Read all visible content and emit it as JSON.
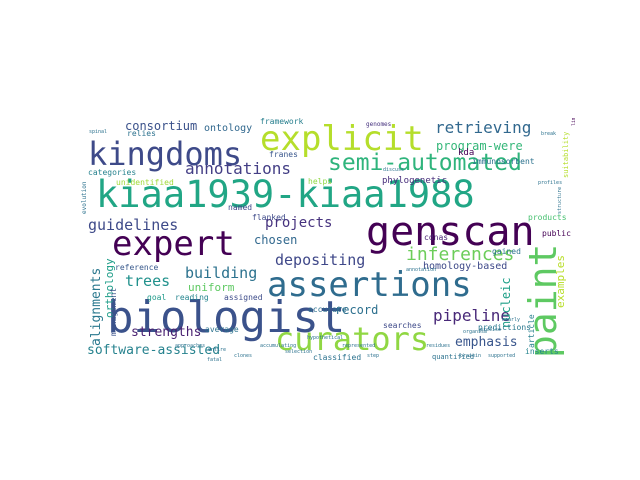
{
  "words": [
    {
      "text": "kiaa1939-kiaa1988",
      "color": "#21a685"
    },
    {
      "text": "genscan",
      "color": "#440154"
    },
    {
      "text": "biologist",
      "color": "#3b528b"
    },
    {
      "text": "assertions",
      "color": "#2f6c8e"
    },
    {
      "text": "expert",
      "color": "#440154"
    },
    {
      "text": "explicit",
      "color": "#b5de2b"
    },
    {
      "text": "curators",
      "color": "#90d743"
    },
    {
      "text": "kingdoms",
      "color": "#3e4a89"
    },
    {
      "text": "paint",
      "color": "#5ec962"
    },
    {
      "text": "semi-automated",
      "color": "#2fb47c"
    },
    {
      "text": "inferences",
      "color": "#6ccd5a"
    },
    {
      "text": "annotations",
      "color": "#433e85"
    },
    {
      "text": "retrieving",
      "color": "#31688e"
    },
    {
      "text": "guidelines",
      "color": "#3e4a89"
    },
    {
      "text": "projects",
      "color": "#46327e"
    },
    {
      "text": "trees",
      "color": "#21918c"
    },
    {
      "text": "building",
      "color": "#2c728e"
    },
    {
      "text": "depositing",
      "color": "#3f4889"
    },
    {
      "text": "pipeline",
      "color": "#482878"
    },
    {
      "text": "software-assisted",
      "color": "#26828e"
    },
    {
      "text": "strengths",
      "color": "#481f70"
    },
    {
      "text": "emphasis",
      "color": "#39568c"
    },
    {
      "text": "alignments",
      "color": "#2a788e"
    },
    {
      "text": "consortium",
      "color": "#3b528b"
    },
    {
      "text": "chosen",
      "color": "#31688e"
    },
    {
      "text": "uniform",
      "color": "#5ec962"
    },
    {
      "text": "orthology",
      "color": "#1f9e89"
    },
    {
      "text": "record",
      "color": "#2d708e"
    },
    {
      "text": "nucleic",
      "color": "#1fa088"
    },
    {
      "text": "examples",
      "color": "#b8de29"
    },
    {
      "text": "program-were",
      "color": "#35b779"
    },
    {
      "text": "homology-based",
      "color": "#3e4989"
    },
    {
      "text": "ontology",
      "color": "#31688e"
    },
    {
      "text": "framework",
      "color": "#277f8e"
    },
    {
      "text": "franes",
      "color": "#39568c"
    },
    {
      "text": "flanked",
      "color": "#3e4a89"
    },
    {
      "text": "unidentified",
      "color": "#a0da39"
    },
    {
      "text": "categories",
      "color": "#26828e"
    },
    {
      "text": "relies",
      "color": "#2c728e"
    },
    {
      "text": "phylogenetic",
      "color": "#472d7b"
    },
    {
      "text": "kda",
      "color": "#440154"
    },
    {
      "text": "immunosorbent",
      "color": "#2c728e"
    },
    {
      "text": "reference",
      "color": "#38598c"
    },
    {
      "text": "management",
      "color": "#3b528b"
    },
    {
      "text": "goal",
      "color": "#1f9a8a"
    },
    {
      "text": "reading",
      "color": "#25858e"
    },
    {
      "text": "assigned",
      "color": "#3e4c8a"
    },
    {
      "text": "average",
      "color": "#2c728e"
    },
    {
      "text": "accurate",
      "color": "#2d708e"
    },
    {
      "text": "cdnas",
      "color": "#482173"
    },
    {
      "text": "public",
      "color": "#440154"
    },
    {
      "text": "gained",
      "color": "#2c728e"
    },
    {
      "text": "products",
      "color": "#46c06f"
    },
    {
      "text": "predictions",
      "color": "#2a788e"
    },
    {
      "text": "article",
      "color": "#277f8e"
    },
    {
      "text": "inserts",
      "color": "#25848e"
    },
    {
      "text": "classified",
      "color": "#2c728e"
    },
    {
      "text": "quantified",
      "color": "#2c728e"
    },
    {
      "text": "searches",
      "color": "#3e4a89"
    },
    {
      "text": "named",
      "color": "#3f4788"
    },
    {
      "text": "helps",
      "color": "#8fd744"
    },
    {
      "text": "evolution",
      "color": "#2c728e"
    },
    {
      "text": "genomes",
      "color": "#46327e"
    },
    {
      "text": "profiles",
      "color": "#2c728e"
    },
    {
      "text": "suitability",
      "color": "#b5de2b"
    },
    {
      "text": "structure",
      "color": "#2c728e"
    },
    {
      "text": "limitations",
      "color": "#440154"
    },
    {
      "text": "entire",
      "color": "#2c728e"
    },
    {
      "text": "fatal",
      "color": "#2c728e"
    },
    {
      "text": "supported",
      "color": "#2c728e"
    },
    {
      "text": "protein",
      "color": "#2c728e"
    },
    {
      "text": "residues",
      "color": "#2c728e"
    },
    {
      "text": "precise",
      "color": "#2c728e"
    },
    {
      "text": "organism",
      "color": "#2c728e"
    },
    {
      "text": "nearly",
      "color": "#2c728e"
    },
    {
      "text": "spinal",
      "color": "#2c728e"
    },
    {
      "text": "break",
      "color": "#2c728e"
    },
    {
      "text": "discuss",
      "color": "#2c728e"
    },
    {
      "text": "clones",
      "color": "#2c728e"
    },
    {
      "text": "accumulating",
      "color": "#2c728e"
    },
    {
      "text": "hypothetical",
      "color": "#2c728e"
    },
    {
      "text": "approaches",
      "color": "#2c728e"
    },
    {
      "text": "selection",
      "color": "#2c728e"
    },
    {
      "text": "step",
      "color": "#2c728e"
    },
    {
      "text": "represented",
      "color": "#2c728e"
    },
    {
      "text": "annotation",
      "color": "#2c728e"
    }
  ]
}
